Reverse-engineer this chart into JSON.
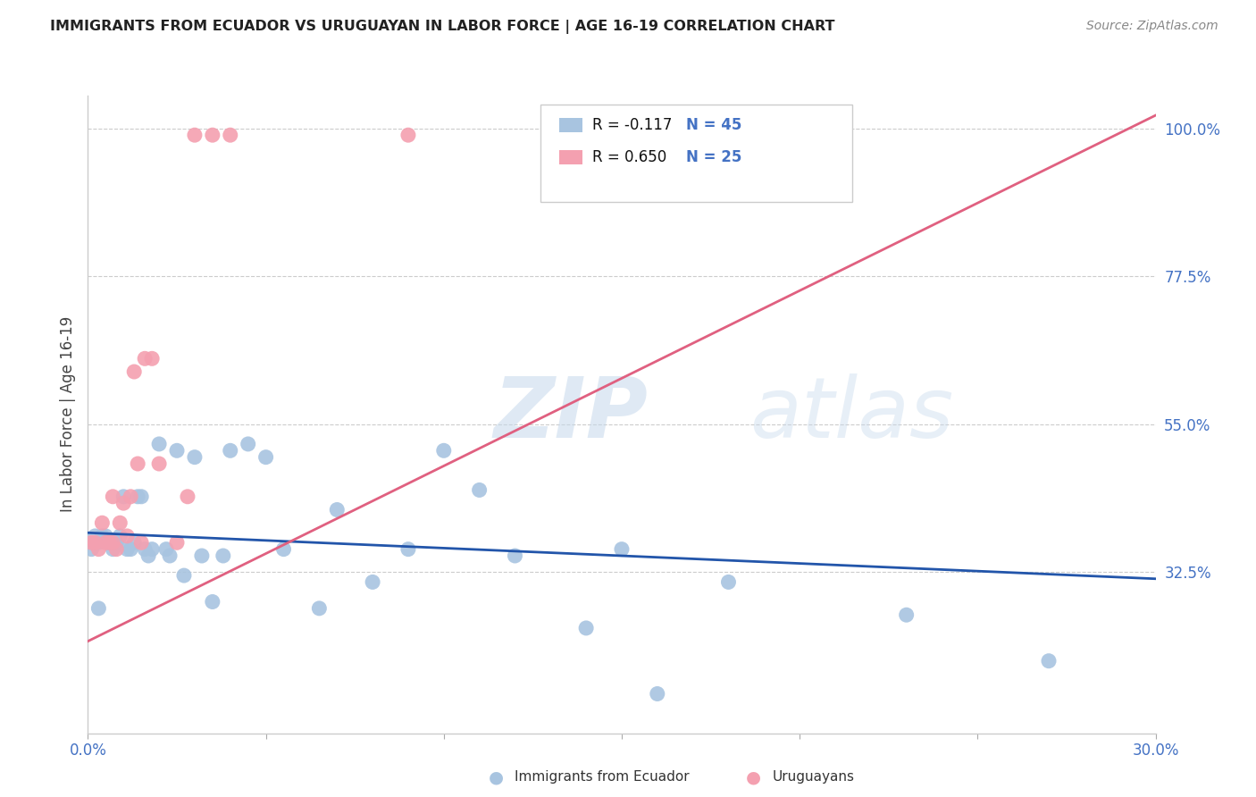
{
  "title": "IMMIGRANTS FROM ECUADOR VS URUGUAYAN IN LABOR FORCE | AGE 16-19 CORRELATION CHART",
  "source": "Source: ZipAtlas.com",
  "ylabel": "In Labor Force | Age 16-19",
  "watermark_zip": "ZIP",
  "watermark_atlas": "atlas",
  "legend_blue_r": "R = -0.117",
  "legend_blue_n": "N = 45",
  "legend_pink_r": "R = 0.650",
  "legend_pink_n": "N = 25",
  "legend_blue_label": "Immigrants from Ecuador",
  "legend_pink_label": "Uruguayans",
  "blue_color": "#a8c4e0",
  "pink_color": "#f4a0b0",
  "blue_line_color": "#2255aa",
  "pink_line_color": "#e06080",
  "title_color": "#222222",
  "right_axis_color": "#4472c4",
  "source_color": "#888888",
  "background_color": "#ffffff",
  "grid_color": "#cccccc",
  "xmin": 0.0,
  "xmax": 0.3,
  "ymin": 0.08,
  "ymax": 1.05,
  "yticks_right": [
    1.0,
    0.775,
    0.55,
    0.325
  ],
  "ytick_labels_right": [
    "100.0%",
    "77.5%",
    "55.0%",
    "32.5%"
  ],
  "xticks": [
    0.0,
    0.05,
    0.1,
    0.15,
    0.2,
    0.25,
    0.3
  ],
  "xtick_labels": [
    "0.0%",
    "",
    "",
    "",
    "",
    "",
    "30.0%"
  ],
  "blue_scatter_x": [
    0.001,
    0.002,
    0.003,
    0.003,
    0.004,
    0.005,
    0.006,
    0.007,
    0.008,
    0.009,
    0.01,
    0.011,
    0.012,
    0.013,
    0.014,
    0.015,
    0.016,
    0.017,
    0.018,
    0.02,
    0.022,
    0.023,
    0.025,
    0.027,
    0.03,
    0.032,
    0.035,
    0.038,
    0.04,
    0.045,
    0.05,
    0.055,
    0.065,
    0.07,
    0.08,
    0.09,
    0.1,
    0.11,
    0.12,
    0.14,
    0.15,
    0.16,
    0.18,
    0.23,
    0.27
  ],
  "blue_scatter_y": [
    0.36,
    0.38,
    0.37,
    0.27,
    0.38,
    0.38,
    0.37,
    0.36,
    0.37,
    0.38,
    0.44,
    0.36,
    0.36,
    0.37,
    0.44,
    0.44,
    0.36,
    0.35,
    0.36,
    0.52,
    0.36,
    0.35,
    0.51,
    0.32,
    0.5,
    0.35,
    0.28,
    0.35,
    0.51,
    0.52,
    0.5,
    0.36,
    0.27,
    0.42,
    0.31,
    0.36,
    0.51,
    0.45,
    0.35,
    0.24,
    0.36,
    0.14,
    0.31,
    0.26,
    0.19
  ],
  "pink_scatter_x": [
    0.001,
    0.002,
    0.003,
    0.004,
    0.005,
    0.006,
    0.007,
    0.007,
    0.008,
    0.009,
    0.01,
    0.011,
    0.012,
    0.013,
    0.014,
    0.015,
    0.016,
    0.018,
    0.02,
    0.025,
    0.028,
    0.03,
    0.035,
    0.04,
    0.09
  ],
  "pink_scatter_y": [
    0.37,
    0.37,
    0.36,
    0.4,
    0.37,
    0.37,
    0.37,
    0.44,
    0.36,
    0.4,
    0.43,
    0.38,
    0.44,
    0.63,
    0.49,
    0.37,
    0.65,
    0.65,
    0.49,
    0.37,
    0.44,
    0.99,
    0.99,
    0.99,
    0.99
  ],
  "blue_line_x": [
    0.0,
    0.3
  ],
  "blue_line_y": [
    0.385,
    0.315
  ],
  "pink_line_x": [
    0.0,
    0.3
  ],
  "pink_line_y": [
    0.22,
    1.02
  ]
}
